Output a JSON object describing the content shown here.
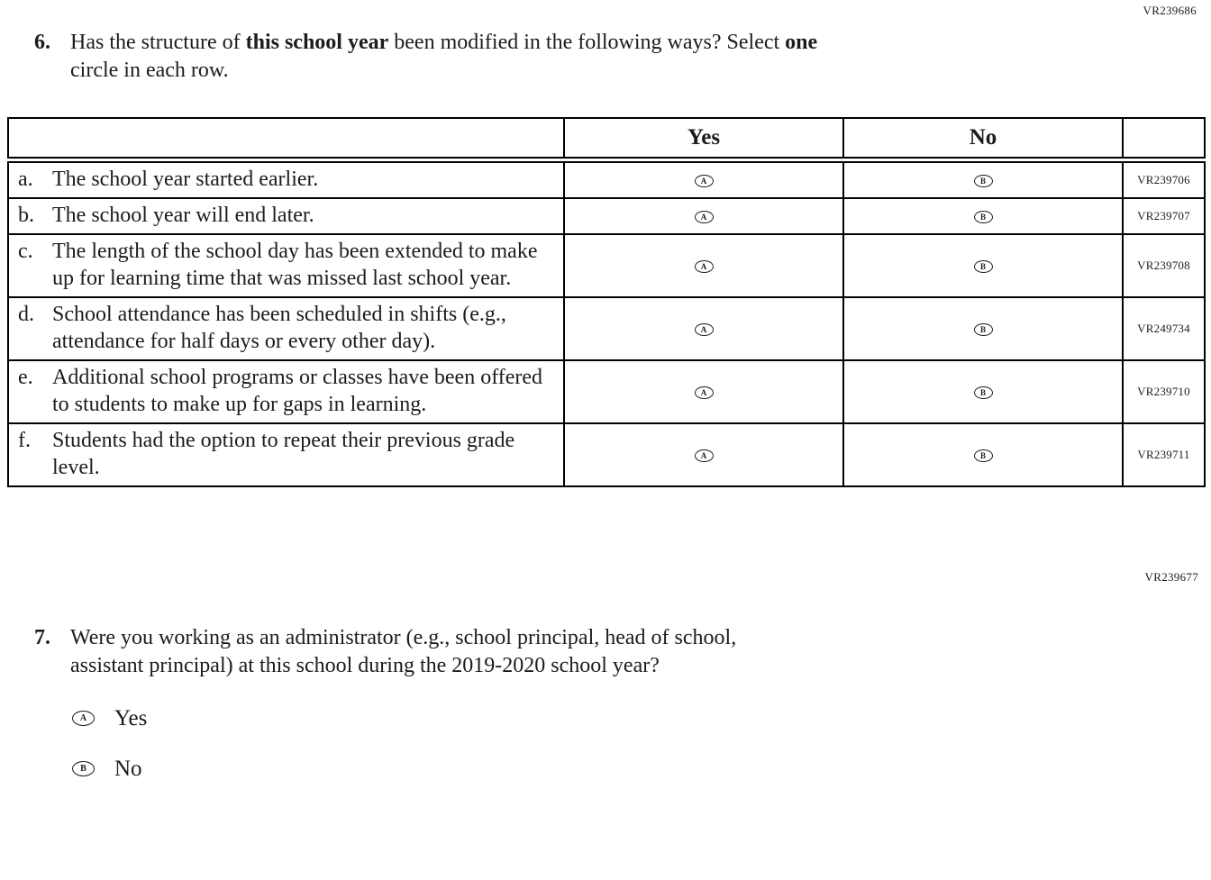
{
  "page": {
    "code_top_right": "VR239686",
    "code_mid_right": "VR239677"
  },
  "q6": {
    "number": "6.",
    "prompt": {
      "seg1": "Has the structure of ",
      "seg2_bold": "this school year",
      "seg3": " been modified in the following ways? Select ",
      "seg4_bold": "one",
      "line2": "circle in each row."
    },
    "table": {
      "col_yes": "Yes",
      "col_no": "No",
      "yes_letter": "A",
      "no_letter": "B",
      "rows": [
        {
          "letter": "a.",
          "text": "The school year started earlier.",
          "code": "VR239706"
        },
        {
          "letter": "b.",
          "text": "The school year will end later.",
          "code": "VR239707"
        },
        {
          "letter": "c.",
          "text": "The length of the school day has been extended to make up for learning time that was missed last school year.",
          "code": "VR239708"
        },
        {
          "letter": "d.",
          "text": "School attendance has been scheduled in shifts (e.g., attendance for half days or every other day).",
          "code": "VR249734"
        },
        {
          "letter": "e.",
          "text": "Additional school programs or classes have been offered to students to make up for gaps in learning.",
          "code": "VR239710"
        },
        {
          "letter": "f.",
          "text": "Students had the option to repeat their previous grade level.",
          "code": "VR239711"
        }
      ]
    }
  },
  "q7": {
    "number": "7.",
    "prompt_line1": "Were you working as an administrator (e.g., school principal, head of school,",
    "prompt_line2": "assistant principal) at this school during the 2019-2020 school year?",
    "options": [
      {
        "letter": "A",
        "label": "Yes"
      },
      {
        "letter": "B",
        "label": "No"
      }
    ]
  }
}
